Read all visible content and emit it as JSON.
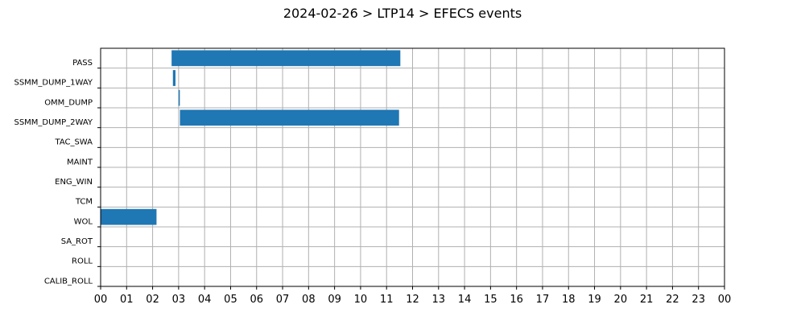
{
  "chart_data": {
    "type": "bar",
    "orientation": "horizontal",
    "title": "2024-02-26 > LTP14 > EFECS events",
    "xlabel": "",
    "ylabel": "",
    "xlim": [
      0,
      24
    ],
    "grid": true,
    "bar_color": "#1f77b4",
    "categories": [
      "PASS",
      "SSMM_DUMP_1WAY",
      "OMM_DUMP",
      "SSMM_DUMP_2WAY",
      "TAC_SWA",
      "MAINT",
      "ENG_WIN",
      "TCM",
      "WOL",
      "SA_ROT",
      "ROLL",
      "CALIB_ROLL"
    ],
    "x_tick_labels": [
      "00",
      "01",
      "02",
      "03",
      "04",
      "05",
      "06",
      "07",
      "08",
      "09",
      "10",
      "11",
      "12",
      "13",
      "14",
      "15",
      "16",
      "17",
      "18",
      "19",
      "20",
      "21",
      "22",
      "23",
      "00"
    ],
    "events": [
      {
        "category": "PASS",
        "start": 2.73,
        "end": 11.53
      },
      {
        "category": "SSMM_DUMP_1WAY",
        "start": 2.78,
        "end": 2.88
      },
      {
        "category": "OMM_DUMP",
        "start": 3.0,
        "end": 3.04
      },
      {
        "category": "SSMM_DUMP_2WAY",
        "start": 3.05,
        "end": 11.48
      },
      {
        "category": "WOL",
        "start": 0.0,
        "end": 2.15
      }
    ]
  }
}
